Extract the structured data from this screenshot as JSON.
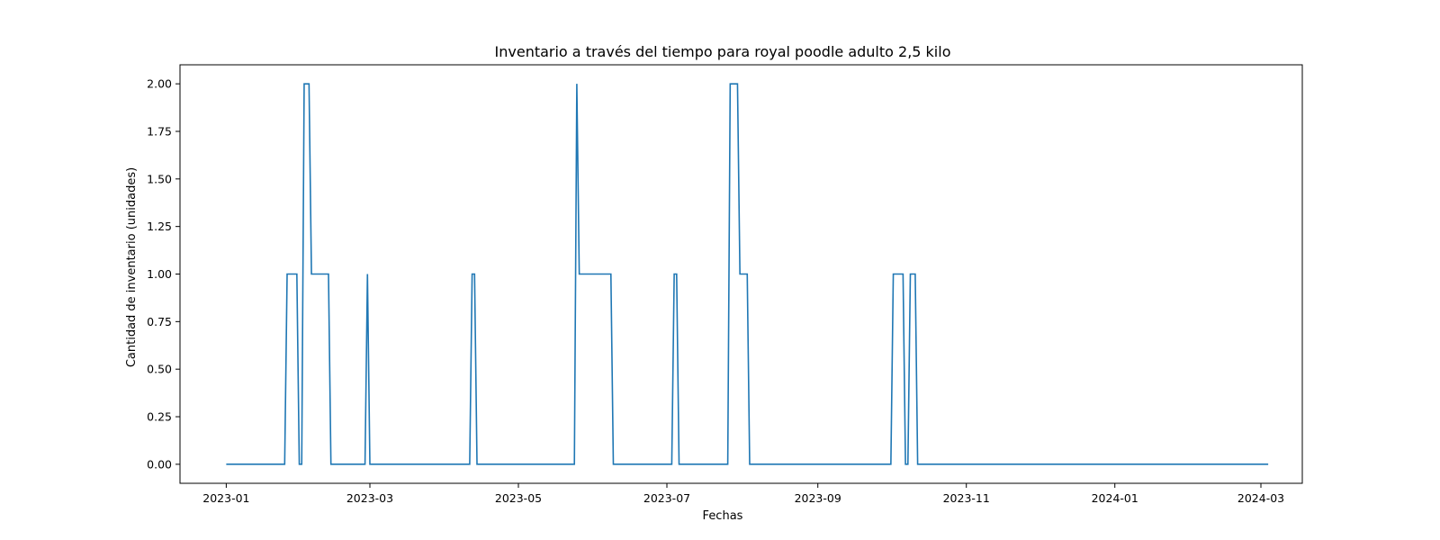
{
  "chart_data": {
    "type": "line",
    "title": "Inventario a través del tiempo para royal poodle  adulto 2,5 kilo",
    "xlabel": "Fechas",
    "ylabel": "Cantidad de inventario (unidades)",
    "x_ticks": [
      "2023-01",
      "2023-03",
      "2023-05",
      "2023-07",
      "2023-09",
      "2023-11",
      "2024-01",
      "2024-03"
    ],
    "y_ticks": [
      "0.00",
      "0.25",
      "0.50",
      "0.75",
      "1.00",
      "1.25",
      "1.50",
      "1.75",
      "2.00"
    ],
    "xlim": [
      "2022-12-13",
      "2024-03-18"
    ],
    "ylim": [
      -0.1,
      2.1
    ],
    "grid": false,
    "color": "#1f77b4",
    "series": [
      {
        "points": [
          [
            "2023-01-01",
            0
          ],
          [
            "2023-01-25",
            0
          ],
          [
            "2023-01-26",
            1
          ],
          [
            "2023-01-30",
            1
          ],
          [
            "2023-01-31",
            0
          ],
          [
            "2023-02-01",
            0
          ],
          [
            "2023-02-02",
            2
          ],
          [
            "2023-02-04",
            2
          ],
          [
            "2023-02-05",
            1
          ],
          [
            "2023-02-12",
            1
          ],
          [
            "2023-02-13",
            0
          ],
          [
            "2023-02-27",
            0
          ],
          [
            "2023-02-28",
            1
          ],
          [
            "2023-03-01",
            0
          ],
          [
            "2023-04-11",
            0
          ],
          [
            "2023-04-12",
            1
          ],
          [
            "2023-04-13",
            1
          ],
          [
            "2023-04-14",
            0
          ],
          [
            "2023-05-24",
            0
          ],
          [
            "2023-05-25",
            2
          ],
          [
            "2023-05-26",
            1
          ],
          [
            "2023-06-08",
            1
          ],
          [
            "2023-06-09",
            0
          ],
          [
            "2023-07-03",
            0
          ],
          [
            "2023-07-04",
            1
          ],
          [
            "2023-07-05",
            1
          ],
          [
            "2023-07-06",
            0
          ],
          [
            "2023-07-26",
            0
          ],
          [
            "2023-07-27",
            2
          ],
          [
            "2023-07-30",
            2
          ],
          [
            "2023-07-31",
            1
          ],
          [
            "2023-08-03",
            1
          ],
          [
            "2023-08-04",
            0
          ],
          [
            "2023-10-01",
            0
          ],
          [
            "2023-10-02",
            1
          ],
          [
            "2023-10-06",
            1
          ],
          [
            "2023-10-07",
            0
          ],
          [
            "2023-10-08",
            0
          ],
          [
            "2023-10-09",
            1
          ],
          [
            "2023-10-11",
            1
          ],
          [
            "2023-10-12",
            0
          ],
          [
            "2024-03-04",
            0
          ]
        ]
      }
    ]
  }
}
